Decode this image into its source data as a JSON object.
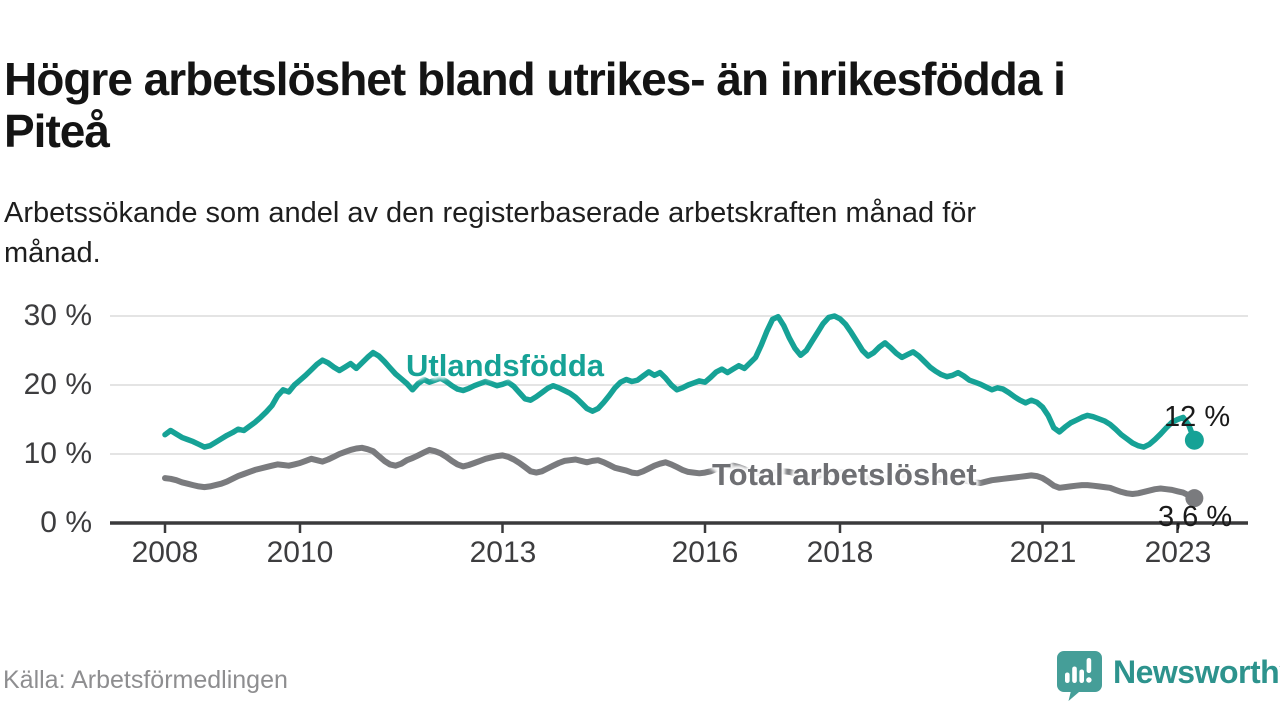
{
  "header": {
    "title": "Högre arbetslöshet bland utrikes- än inrikesfödda i\nPiteå",
    "subtitle": "Arbetssökande som andel av den registerbaserade arbetskraften månad för\nmånad."
  },
  "footer": {
    "source": "Källa: Arbetsförmedlingen",
    "brand_name": "Newsworthy",
    "logo_icon": "bar-chart-speech-bubble-icon"
  },
  "colors": {
    "foreign_line": "#16A296",
    "total_line": "#7A7B7E",
    "total_label": "#6E6F73",
    "axis": "#3A3A3C",
    "grid": "#DBDBDB",
    "tick_text": "#3D3D3F",
    "title_text": "#141414",
    "source_text": "#8E8E90",
    "logo_icon": "#459E98",
    "logo_text": "#2D938D",
    "end_label_text": "#1A1A1A"
  },
  "chart_data": {
    "type": "line",
    "title": "Högre arbetslöshet bland utrikes- än inrikesfödda i Piteå",
    "subtitle": "Arbetssökande som andel av den registerbaserade arbetskraften månad för månad.",
    "unit": "%",
    "x_frequency": "monthly",
    "x_start": "2008-01",
    "x_end": "2023-04",
    "ylim": [
      0,
      32
    ],
    "grid": true,
    "legend_position": "inline-labels",
    "yticks": [
      {
        "label": "30 %",
        "value": 30
      },
      {
        "label": "20 %",
        "value": 20
      },
      {
        "label": "10 %",
        "value": 10
      },
      {
        "label": "0 %",
        "value": 0
      }
    ],
    "xticks": [
      {
        "label": "2008",
        "year": 2008
      },
      {
        "label": "2010",
        "year": 2010
      },
      {
        "label": "2013",
        "year": 2013
      },
      {
        "label": "2016",
        "year": 2016
      },
      {
        "label": "2018",
        "year": 2018
      },
      {
        "label": "2021",
        "year": 2021
      },
      {
        "label": "2023",
        "year": 2023
      }
    ],
    "series": [
      {
        "name": "Utlandsfödda",
        "color": "#16A296",
        "end_label": "12 %",
        "end_value": 12.0,
        "values": [
          12.8,
          13.4,
          12.9,
          12.4,
          12.1,
          11.8,
          11.4,
          11.0,
          11.2,
          11.7,
          12.2,
          12.7,
          13.1,
          13.6,
          13.4,
          14.0,
          14.6,
          15.3,
          16.1,
          17.0,
          18.4,
          19.3,
          19.0,
          20.0,
          20.7,
          21.4,
          22.2,
          23.0,
          23.6,
          23.2,
          22.6,
          22.1,
          22.6,
          23.1,
          22.4,
          23.2,
          24.0,
          24.7,
          24.2,
          23.4,
          22.5,
          21.6,
          20.9,
          20.2,
          19.3,
          20.2,
          20.8,
          20.4,
          20.7,
          21.0,
          20.5,
          19.9,
          19.4,
          19.2,
          19.5,
          19.9,
          20.2,
          20.5,
          20.2,
          19.9,
          20.1,
          20.4,
          19.8,
          18.9,
          18.0,
          17.8,
          18.3,
          18.9,
          19.5,
          19.9,
          19.6,
          19.2,
          18.8,
          18.2,
          17.4,
          16.6,
          16.2,
          16.6,
          17.5,
          18.5,
          19.6,
          20.4,
          20.8,
          20.5,
          20.7,
          21.3,
          21.9,
          21.4,
          21.8,
          21.0,
          20.0,
          19.3,
          19.6,
          20.0,
          20.3,
          20.6,
          20.4,
          21.1,
          21.9,
          22.3,
          21.8,
          22.3,
          22.8,
          22.4,
          23.2,
          24.0,
          25.8,
          27.8,
          29.5,
          29.9,
          28.6,
          26.8,
          25.3,
          24.3,
          25.0,
          26.3,
          27.6,
          28.9,
          29.8,
          30.0,
          29.6,
          28.8,
          27.6,
          26.3,
          25.0,
          24.2,
          24.7,
          25.5,
          26.1,
          25.4,
          24.6,
          24.0,
          24.4,
          24.8,
          24.2,
          23.4,
          22.6,
          22.0,
          21.5,
          21.2,
          21.4,
          21.8,
          21.3,
          20.7,
          20.4,
          20.1,
          19.7,
          19.3,
          19.6,
          19.4,
          18.9,
          18.3,
          17.8,
          17.4,
          17.8,
          17.5,
          16.8,
          15.6,
          13.8,
          13.2,
          13.9,
          14.5,
          14.9,
          15.3,
          15.6,
          15.4,
          15.1,
          14.8,
          14.3,
          13.6,
          12.8,
          12.2,
          11.6,
          11.2,
          11.0,
          11.4,
          12.1,
          12.9,
          13.8,
          14.6,
          15.0,
          15.3,
          14.2,
          12.0
        ]
      },
      {
        "name": "Total arbetslöshet",
        "color": "#7A7B7E",
        "end_label": "3,6 %",
        "end_value": 3.6,
        "values": [
          6.5,
          6.4,
          6.2,
          5.9,
          5.7,
          5.5,
          5.3,
          5.2,
          5.3,
          5.5,
          5.7,
          6.0,
          6.4,
          6.8,
          7.1,
          7.4,
          7.7,
          7.9,
          8.1,
          8.3,
          8.5,
          8.4,
          8.3,
          8.5,
          8.7,
          9.0,
          9.3,
          9.1,
          8.9,
          9.2,
          9.6,
          10.0,
          10.3,
          10.6,
          10.8,
          10.9,
          10.7,
          10.4,
          9.7,
          9.0,
          8.5,
          8.3,
          8.6,
          9.1,
          9.4,
          9.8,
          10.2,
          10.6,
          10.4,
          10.1,
          9.6,
          9.0,
          8.5,
          8.2,
          8.4,
          8.7,
          9.0,
          9.3,
          9.5,
          9.7,
          9.8,
          9.6,
          9.2,
          8.7,
          8.1,
          7.5,
          7.3,
          7.5,
          7.9,
          8.3,
          8.7,
          9.0,
          9.1,
          9.2,
          9.0,
          8.8,
          9.0,
          9.1,
          8.8,
          8.4,
          8.0,
          7.8,
          7.6,
          7.3,
          7.2,
          7.5,
          7.9,
          8.3,
          8.6,
          8.8,
          8.5,
          8.1,
          7.7,
          7.4,
          7.3,
          7.2,
          7.3,
          7.5,
          7.8,
          8.0,
          8.2,
          8.3,
          8.1,
          7.8,
          7.5,
          7.3,
          7.2,
          7.1,
          7.2,
          7.4,
          7.5,
          7.4,
          7.2,
          7.0,
          6.8,
          6.7,
          6.8,
          7.0,
          7.1,
          7.2,
          7.3,
          7.3,
          7.2,
          7.0,
          6.8,
          6.6,
          6.5,
          6.4,
          6.5,
          6.7,
          6.8,
          6.9,
          7.0,
          7.0,
          6.9,
          6.7,
          6.5,
          6.3,
          6.2,
          6.1,
          6.2,
          6.3,
          6.2,
          6.0,
          5.9,
          5.8,
          6.0,
          6.2,
          6.3,
          6.4,
          6.5,
          6.6,
          6.7,
          6.8,
          6.9,
          6.8,
          6.5,
          6.0,
          5.4,
          5.1,
          5.2,
          5.3,
          5.4,
          5.5,
          5.5,
          5.4,
          5.3,
          5.2,
          5.1,
          4.8,
          4.5,
          4.3,
          4.2,
          4.3,
          4.5,
          4.7,
          4.9,
          5.0,
          4.9,
          4.8,
          4.6,
          4.4,
          4.0,
          3.6
        ]
      }
    ]
  }
}
